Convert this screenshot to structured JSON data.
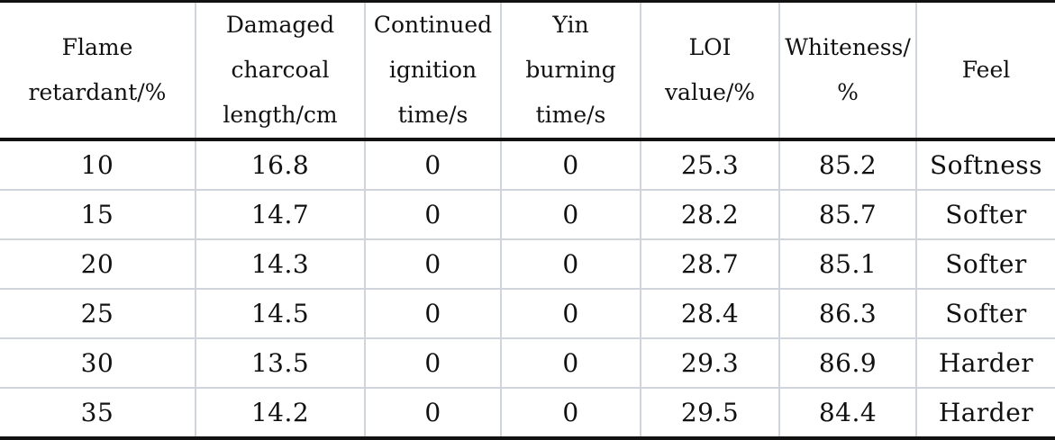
{
  "table": {
    "headers": [
      [
        "Flame",
        "retardant/%"
      ],
      [
        "Damaged",
        "charcoal",
        "length/cm"
      ],
      [
        "Continued",
        "ignition",
        "time/s"
      ],
      [
        "Yin",
        "burning",
        "time/s"
      ],
      [
        "LOI",
        "value/%"
      ],
      [
        "Whiteness/",
        "%"
      ],
      [
        "Feel"
      ]
    ],
    "rows": [
      [
        "10",
        "16.8",
        "0",
        "0",
        "25.3",
        "85.2",
        "Softness"
      ],
      [
        "15",
        "14.7",
        "0",
        "0",
        "28.2",
        "85.7",
        "Softer"
      ],
      [
        "20",
        "14.3",
        "0",
        "0",
        "28.7",
        "85.1",
        "Softer"
      ],
      [
        "25",
        "14.5",
        "0",
        "0",
        "28.4",
        "86.3",
        "Softer"
      ],
      [
        "30",
        "13.5",
        "0",
        "0",
        "29.3",
        "86.9",
        "Harder"
      ],
      [
        "35",
        "14.2",
        "0",
        "0",
        "29.5",
        "84.4",
        "Harder"
      ]
    ]
  }
}
